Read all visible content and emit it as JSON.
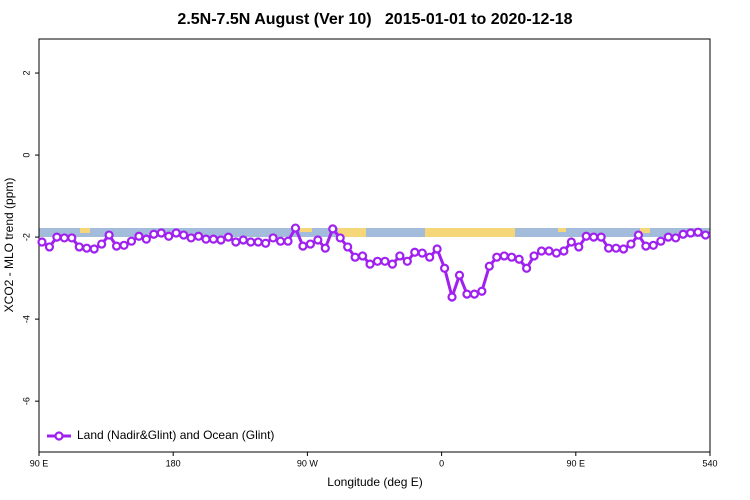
{
  "chart_data": {
    "type": "line",
    "title": "2.5N-7.5N August (Ver 10)   2015-01-01 to 2020-12-18",
    "xlabel": "Longitude (deg E)",
    "ylabel": "XCO2 - MLO trend (ppm)",
    "x": [
      92,
      97,
      102,
      107,
      112,
      117,
      122,
      127,
      132,
      137,
      142,
      147,
      152,
      157,
      162,
      167,
      172,
      177,
      182,
      187,
      192,
      197,
      202,
      207,
      212,
      217,
      222,
      227,
      232,
      237,
      242,
      247,
      252,
      257,
      262,
      267,
      272,
      277,
      282,
      287,
      292,
      297,
      302,
      307,
      312,
      317,
      322,
      327,
      332,
      337,
      342,
      347,
      352,
      357,
      362,
      367,
      372,
      377,
      382,
      387,
      392,
      397,
      402,
      407,
      412,
      417,
      422,
      427,
      432,
      437,
      442,
      447,
      452,
      457,
      462,
      467,
      472,
      477,
      482,
      487,
      492,
      497,
      502,
      507,
      512,
      517,
      522,
      527,
      532,
      537
    ],
    "series": [
      {
        "name": "Land (Nadir&Glint) and Ocean (Glint)",
        "color": "#a020f0",
        "values": [
          -2.12,
          -2.24,
          -2.0,
          -2.02,
          -2.02,
          -2.24,
          -2.27,
          -2.29,
          -2.17,
          -1.95,
          -2.22,
          -2.2,
          -2.1,
          -1.98,
          -2.05,
          -1.93,
          -1.9,
          -1.98,
          -1.9,
          -1.95,
          -2.02,
          -1.98,
          -2.05,
          -2.05,
          -2.07,
          -2.0,
          -2.12,
          -2.07,
          -2.12,
          -2.12,
          -2.15,
          -2.02,
          -2.1,
          -2.1,
          -1.78,
          -2.22,
          -2.17,
          -2.07,
          -2.27,
          -1.8,
          -2.02,
          -2.24,
          -2.49,
          -2.46,
          -2.66,
          -2.59,
          -2.59,
          -2.66,
          -2.46,
          -2.59,
          -2.37,
          -2.39,
          -2.49,
          -2.29,
          -2.76,
          -3.46,
          -2.93,
          -3.39,
          -3.39,
          -3.32,
          -2.71,
          -2.49,
          -2.46,
          -2.49,
          -2.54,
          -2.76,
          -2.46,
          -2.34,
          -2.34,
          -2.39,
          -2.34,
          -2.12,
          -2.24,
          -1.98,
          -2.0,
          -2.0,
          -2.27,
          -2.27,
          -2.29,
          -2.17,
          -1.95,
          -2.22,
          -2.2,
          -2.1,
          -2.0,
          -2.02,
          -1.93,
          -1.9,
          -1.88,
          -1.95
        ]
      }
    ],
    "xlim": [
      90,
      540
    ],
    "xticks": [
      {
        "value": 90,
        "label": "90 E"
      },
      180,
      {
        "value": 270,
        "label": "90 W"
      },
      {
        "value": 360,
        "label": "0"
      },
      {
        "value": 450,
        "label": "90 E"
      },
      540
    ],
    "ylim": [
      -7.24,
      2.83
    ],
    "yticks": [
      2,
      0,
      -2,
      -4,
      -6
    ],
    "grid": false,
    "legend": "bottom-left"
  }
}
